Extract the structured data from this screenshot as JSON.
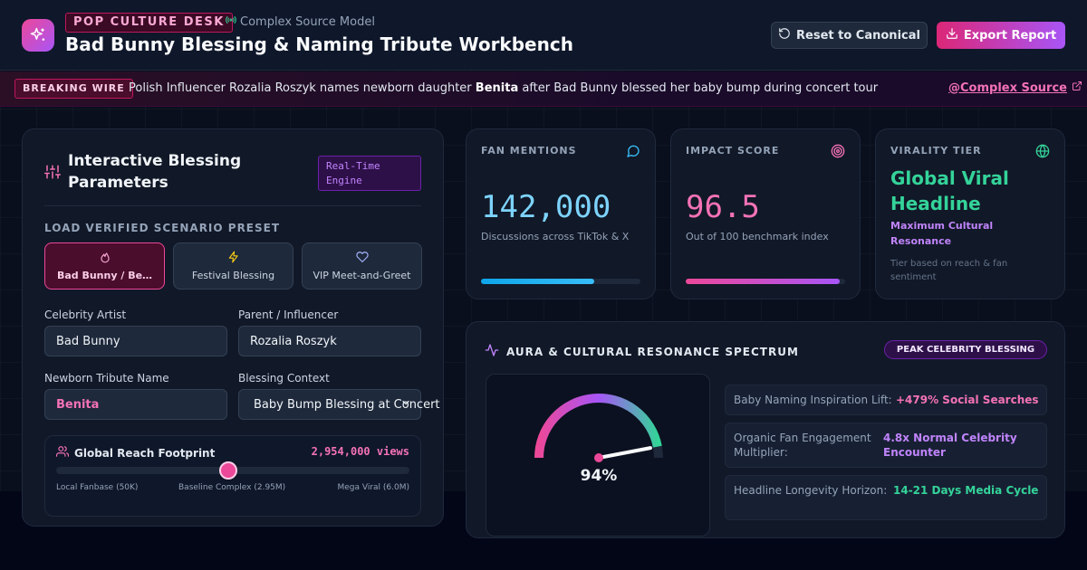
{
  "header": {
    "desk_badge": "POP CULTURE DESK",
    "source_model": "Complex Source Model",
    "title": "Bad Bunny Blessing & Naming Tribute Workbench",
    "reset_label": "Reset to Canonical",
    "export_label": "Export Report"
  },
  "wire": {
    "badge": "BREAKING WIRE",
    "text_before": "Polish Influencer Rozalia Roszyk names newborn daughter ",
    "text_bold": "Benita",
    "text_after": " after Bad Bunny blessed her baby bump during concert tour",
    "link": "@Complex Source"
  },
  "params": {
    "title": "Interactive Blessing Parameters",
    "badge": "Real-Time Engine",
    "preset_label": "LOAD VERIFIED SCENARIO PRESET",
    "presets": [
      {
        "label": "Bad Bunny / Be…",
        "icon": "flame-icon",
        "active": true
      },
      {
        "label": "Festival Blessing",
        "icon": "bolt-icon",
        "active": false
      },
      {
        "label": "VIP Meet-and-Greet",
        "icon": "heart-icon",
        "active": false
      }
    ],
    "artist_label": "Celebrity Artist",
    "artist_value": "Bad Bunny",
    "parent_label": "Parent / Influencer",
    "parent_value": "Rozalia Roszyk",
    "tribute_label": "Newborn Tribute Name",
    "tribute_value": "Benita",
    "context_label": "Blessing Context",
    "context_value": "Baby Bump Blessing at Concert",
    "reach": {
      "title": "Global Reach Footprint",
      "views": "2,954,000 views",
      "value": 2954000,
      "min": 50000,
      "max": 6000000,
      "tick_low": "Local Fanbase (50K)",
      "tick_mid": "Baseline Complex (2.95M)",
      "tick_high": "Mega Viral (6.0M)"
    }
  },
  "stats": {
    "mentions": {
      "label": "FAN MENTIONS",
      "value": "142,000",
      "sub": "Discussions across TikTok & X",
      "progress": 0.71,
      "color": "#7dd3fc"
    },
    "impact": {
      "label": "IMPACT SCORE",
      "value": "96.5",
      "sub": "Out of 100 benchmark index",
      "progress": 0.965,
      "color": "#f472b6"
    },
    "virality": {
      "label": "VIRALITY TIER",
      "value": "Global Viral Headline",
      "sub": "Maximum Cultural Resonance",
      "note": "Tier based on reach & fan sentiment"
    }
  },
  "aura": {
    "title": "AURA & CULTURAL RESONANCE SPECTRUM",
    "badge": "PEAK CELEBRITY BLESSING",
    "gauge_value": 0.94,
    "gauge_label": "94%",
    "metrics": [
      {
        "label": "Baby Naming Inspiration Lift:",
        "value": "+479% Social Searches",
        "color": "#f472b6"
      },
      {
        "label": "Organic Fan Engagement Multiplier:",
        "value": "4.8x Normal Celebrity Encounter",
        "color": "#c084fc"
      },
      {
        "label": "Headline Longevity Horizon:",
        "value": "14-21 Days Media Cycle",
        "color": "#34d399"
      }
    ]
  },
  "colors": {
    "accent": "#ec4899",
    "purple": "#a855f7",
    "green": "#34d399",
    "sky": "#7dd3fc"
  }
}
